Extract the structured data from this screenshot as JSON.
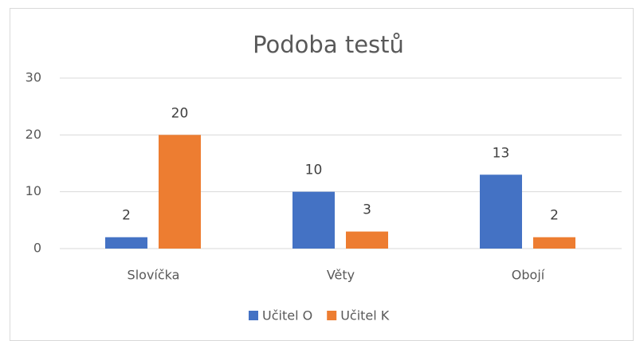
{
  "chart_data": {
    "type": "bar",
    "title": "Podoba testů",
    "categories": [
      "Slovíčka",
      "Věty",
      "Obojí"
    ],
    "series": [
      {
        "name": "Učitel O",
        "color": "#4472c4",
        "values": [
          2,
          10,
          13
        ]
      },
      {
        "name": "Učitel K",
        "color": "#ed7d31",
        "values": [
          20,
          3,
          2
        ]
      }
    ],
    "ylim": [
      0,
      30
    ],
    "yticks": [
      0,
      10,
      20,
      30
    ],
    "grid": true,
    "legend": "bottom"
  }
}
